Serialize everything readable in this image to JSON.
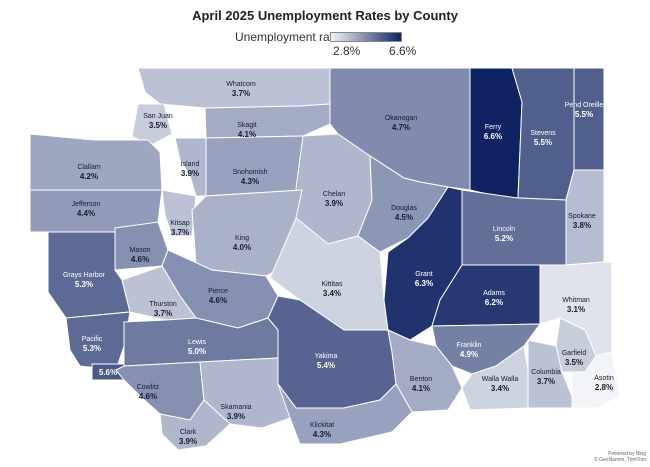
{
  "title": "April 2025 Unemployment Rates by County",
  "legend": {
    "label": "Unemployment rate",
    "min_label": "2.8%",
    "max_label": "6.6%",
    "min_value": 2.8,
    "max_value": 6.6,
    "min_color": "#f2f4f8",
    "max_color": "#0f2262"
  },
  "credit": [
    "Powered by Bing",
    "© GeoNames, TomTom"
  ],
  "counties": [
    {
      "name": "Whatcom",
      "rate": 3.7,
      "label": "3.7%"
    },
    {
      "name": "San Juan",
      "rate": 3.5,
      "label": "3.5%"
    },
    {
      "name": "Skagit",
      "rate": 4.1,
      "label": "4.1%"
    },
    {
      "name": "Okanogan",
      "rate": 4.7,
      "label": "4.7%"
    },
    {
      "name": "Ferry",
      "rate": 6.6,
      "label": "6.6%"
    },
    {
      "name": "Stevens",
      "rate": 5.5,
      "label": "5.5%"
    },
    {
      "name": "Pend Oreille",
      "rate": 5.5,
      "label": "5.5%"
    },
    {
      "name": "Clallam",
      "rate": 4.2,
      "label": "4.2%"
    },
    {
      "name": "Island",
      "rate": 3.9,
      "label": "3.9%"
    },
    {
      "name": "Snohomish",
      "rate": 4.3,
      "label": "4.3%"
    },
    {
      "name": "Chelan",
      "rate": 3.9,
      "label": "3.9%"
    },
    {
      "name": "Jefferson",
      "rate": 4.4,
      "label": "4.4%"
    },
    {
      "name": "Kitsap",
      "rate": 3.7,
      "label": "3.7%"
    },
    {
      "name": "Douglas",
      "rate": 4.5,
      "label": "4.5%"
    },
    {
      "name": "Lincoln",
      "rate": 5.2,
      "label": "5.2%"
    },
    {
      "name": "Spokane",
      "rate": 3.8,
      "label": "3.8%"
    },
    {
      "name": "King",
      "rate": 4.0,
      "label": "4.0%"
    },
    {
      "name": "Mason",
      "rate": 4.6,
      "label": "4.6%"
    },
    {
      "name": "Grays Harbor",
      "rate": 5.3,
      "label": "5.3%"
    },
    {
      "name": "Kittitas",
      "rate": 3.4,
      "label": "3.4%"
    },
    {
      "name": "Grant",
      "rate": 6.3,
      "label": "6.3%"
    },
    {
      "name": "Adams",
      "rate": 6.2,
      "label": "6.2%"
    },
    {
      "name": "Pierce",
      "rate": 4.6,
      "label": "4.6%"
    },
    {
      "name": "Thurston",
      "rate": 3.7,
      "label": "3.7%"
    },
    {
      "name": "Whitman",
      "rate": 3.1,
      "label": "3.1%"
    },
    {
      "name": "Pacific",
      "rate": 5.3,
      "label": "5.3%"
    },
    {
      "name": "Lewis",
      "rate": 5.0,
      "label": "5.0%"
    },
    {
      "name": "Yakima",
      "rate": 5.4,
      "label": "5.4%"
    },
    {
      "name": "Franklin",
      "rate": 4.9,
      "label": "4.9%"
    },
    {
      "name": "Garfield",
      "rate": 3.5,
      "label": "3.5%"
    },
    {
      "name": "Wahkiakum",
      "rate": 5.6,
      "label": "5.6%"
    },
    {
      "name": "Benton",
      "rate": 4.1,
      "label": "4.1%"
    },
    {
      "name": "Walla Walla",
      "rate": 3.4,
      "label": "3.4%"
    },
    {
      "name": "Columbia",
      "rate": 3.7,
      "label": "3.7%"
    },
    {
      "name": "Asotin",
      "rate": 2.8,
      "label": "2.8%"
    },
    {
      "name": "Cowlitz",
      "rate": 4.6,
      "label": "4.6%"
    },
    {
      "name": "Skamania",
      "rate": 3.9,
      "label": "3.9%"
    },
    {
      "name": "Klickitat",
      "rate": 4.3,
      "label": "4.3%"
    },
    {
      "name": "Clark",
      "rate": 3.9,
      "label": "3.9%"
    }
  ]
}
